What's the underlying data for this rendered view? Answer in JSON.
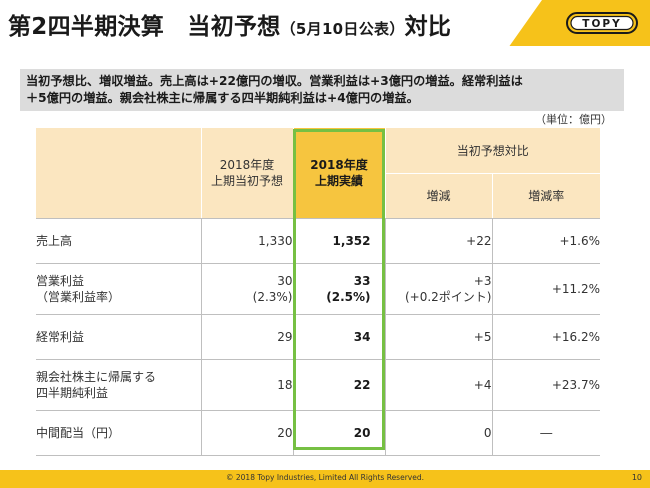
{
  "header": {
    "title_main": "第2四半期決算　当初予想",
    "title_small": "（5月10日公表）",
    "title_tail": "対比",
    "logo_text": "TOPY"
  },
  "summary": {
    "line1": "当初予想比、増収増益。売上高は+22億円の増収。営業利益は+3億円の増益。経常利益は",
    "line2": "＋5億円の増益。親会社株主に帰属する四半期純利益は+4億円の増益。"
  },
  "unit_note": "（単位：億円）",
  "table": {
    "headers": {
      "prev_line1": "2018年度",
      "prev_line2": "上期当初予想",
      "act_line1": "2018年度",
      "act_line2": "上期実績",
      "group": "当初予想対比",
      "diff": "増減",
      "rate": "増減率"
    },
    "rows": [
      {
        "label1": "売上高",
        "label2": "",
        "prev1": "1,330",
        "prev2": "",
        "act1": "1,352",
        "act2": "",
        "diff1": "+22",
        "diff2": "",
        "rate": "+1.6%"
      },
      {
        "label1": "営業利益",
        "label2": "（営業利益率）",
        "prev1": "30",
        "prev2": "(2.3%)",
        "act1": "33",
        "act2": "(2.5%)",
        "diff1": "+3",
        "diff2": "(+0.2ポイント)",
        "rate": "+11.2%"
      },
      {
        "label1": "経常利益",
        "label2": "",
        "prev1": "29",
        "prev2": "",
        "act1": "34",
        "act2": "",
        "diff1": "+5",
        "diff2": "",
        "rate": "+16.2%"
      },
      {
        "label1": "親会社株主に帰属する",
        "label2": "四半期純利益",
        "prev1": "18",
        "prev2": "",
        "act1": "22",
        "act2": "",
        "diff1": "+4",
        "diff2": "",
        "rate": "+23.7%"
      },
      {
        "label1": "中間配当（円）",
        "label2": "",
        "prev1": "20",
        "prev2": "",
        "act1": "20",
        "act2": "",
        "diff1": "0",
        "diff2": "",
        "rate": "―"
      }
    ]
  },
  "footer": {
    "copyright": "© 2018 Topy Industries, Limited All Rights Reserved.",
    "page_number": "10"
  },
  "colors": {
    "brand_yellow": "#f6c21a",
    "highlight_green": "#76c043",
    "header_cell": "#fbe6c0",
    "actual_header_cell": "#f6c53f"
  }
}
